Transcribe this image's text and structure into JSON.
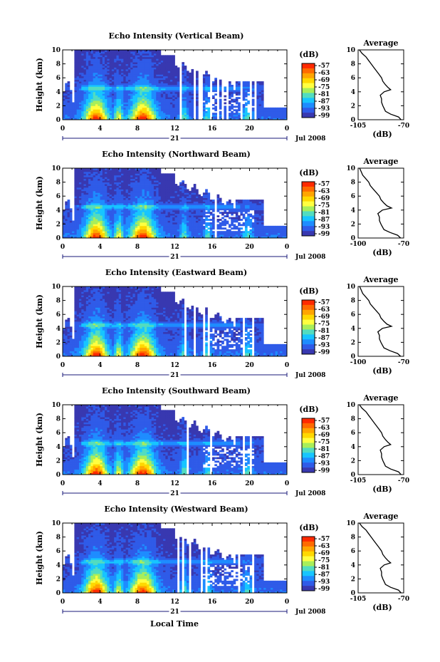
{
  "colorbar": {
    "unit": "(dB)",
    "labels": [
      "-57",
      "-63",
      "-69",
      "-75",
      "-81",
      "-87",
      "-93",
      "-99"
    ],
    "colors": [
      "#ff2a00",
      "#ff6a00",
      "#ffa500",
      "#ffd800",
      "#ffff40",
      "#a8ee5a",
      "#52dcc0",
      "#17c5ff",
      "#1e8cff",
      "#2f5be8",
      "#3838b0"
    ]
  },
  "xaxis": {
    "ticks": [
      "0",
      "4",
      "8",
      "12",
      "16",
      "20",
      "0"
    ],
    "day_label": "21",
    "month_label": "Jul 2008",
    "label": "Local Time"
  },
  "chart_data": [
    {
      "type": "heatmap",
      "title": "Echo Intensity (Vertical Beam)",
      "ylabel": "Height (km)",
      "yticks": [
        "0",
        "2",
        "4",
        "6",
        "8",
        "10"
      ],
      "ylim": [
        0,
        10
      ],
      "xlim": [
        0,
        24
      ],
      "legend": "right",
      "profile": {
        "title": "Average",
        "xlabel": "(dB)",
        "xticks": [
          "-105",
          "-70"
        ],
        "xlim": [
          -105,
          -70
        ],
        "yticks": [
          "0",
          "2",
          "4",
          "6",
          "8",
          "10"
        ],
        "heights": [
          0,
          0.4,
          0.8,
          1.2,
          1.6,
          2.0,
          2.5,
          3.0,
          3.5,
          4.0,
          4.3,
          4.6,
          5.0,
          5.5,
          6.0,
          6.5,
          7.0,
          7.5,
          8.0,
          8.5,
          9.0,
          9.5,
          10.0
        ],
        "values": [
          -72,
          -74,
          -80,
          -84,
          -85,
          -86,
          -87,
          -87,
          -88,
          -85,
          -80,
          -82,
          -84,
          -86,
          -87,
          -89,
          -91,
          -93,
          -95,
          -97,
          -99,
          -102,
          -104
        ]
      }
    },
    {
      "type": "heatmap",
      "title": "Echo Intensity (Northward Beam)",
      "ylabel": "Height (km)",
      "yticks": [
        "0",
        "2",
        "4",
        "6",
        "8",
        "10"
      ],
      "ylim": [
        0,
        10
      ],
      "xlim": [
        0,
        24
      ],
      "legend": "right",
      "profile": {
        "title": "Average",
        "xlabel": "(dB)",
        "xticks": [
          "-100",
          "-70"
        ],
        "xlim": [
          -100,
          -70
        ],
        "yticks": [
          "0",
          "2",
          "4",
          "6",
          "8",
          "10"
        ],
        "heights": [
          0,
          0.4,
          0.8,
          1.2,
          1.6,
          2.0,
          2.5,
          3.0,
          3.5,
          4.0,
          4.3,
          4.6,
          5.0,
          5.5,
          6.0,
          6.5,
          7.0,
          7.5,
          8.0,
          8.5,
          9.0,
          9.5,
          10.0
        ],
        "values": [
          -72,
          -74,
          -79,
          -83,
          -84,
          -85,
          -86,
          -86,
          -87,
          -84,
          -78,
          -81,
          -83,
          -85,
          -86,
          -88,
          -90,
          -92,
          -93,
          -95,
          -97,
          -98,
          -99
        ]
      }
    },
    {
      "type": "heatmap",
      "title": "Echo Intensity (Eastward Beam)",
      "ylabel": "Height (km)",
      "yticks": [
        "0",
        "2",
        "4",
        "6",
        "8",
        "10"
      ],
      "ylim": [
        0,
        10
      ],
      "xlim": [
        0,
        24
      ],
      "legend": "right",
      "profile": {
        "title": "Average",
        "xlabel": "(dB)",
        "xticks": [
          "-100",
          "-70"
        ],
        "xlim": [
          -100,
          -70
        ],
        "yticks": [
          "0",
          "2",
          "4",
          "6",
          "8",
          "10"
        ],
        "heights": [
          0,
          0.4,
          0.8,
          1.2,
          1.6,
          2.0,
          2.5,
          3.0,
          3.5,
          4.0,
          4.3,
          4.6,
          5.0,
          5.5,
          6.0,
          6.5,
          7.0,
          7.5,
          8.0,
          8.5,
          9.0,
          9.5,
          10.0
        ],
        "values": [
          -72,
          -74,
          -79,
          -83,
          -84,
          -85,
          -86,
          -86,
          -87,
          -84,
          -78,
          -81,
          -83,
          -85,
          -86,
          -88,
          -90,
          -92,
          -93,
          -95,
          -97,
          -98,
          -99
        ]
      }
    },
    {
      "type": "heatmap",
      "title": "Echo Intensity (Southward Beam)",
      "ylabel": "Height (km)",
      "yticks": [
        "0",
        "2",
        "4",
        "6",
        "8",
        "10"
      ],
      "ylim": [
        0,
        10
      ],
      "xlim": [
        0,
        24
      ],
      "legend": "right",
      "profile": {
        "title": "Average",
        "xlabel": "(dB)",
        "xticks": [
          "-105",
          "-70"
        ],
        "xlim": [
          -105,
          -70
        ],
        "yticks": [
          "0",
          "2",
          "4",
          "6",
          "8",
          "10"
        ],
        "heights": [
          0,
          0.4,
          0.8,
          1.2,
          1.6,
          2.0,
          2.5,
          3.0,
          3.5,
          4.0,
          4.3,
          4.6,
          5.0,
          5.5,
          6.0,
          6.5,
          7.0,
          7.5,
          8.0,
          8.5,
          9.0,
          9.5,
          10.0
        ],
        "values": [
          -72,
          -74,
          -80,
          -84,
          -85,
          -86,
          -87,
          -87,
          -88,
          -85,
          -80,
          -82,
          -84,
          -86,
          -87,
          -89,
          -91,
          -93,
          -95,
          -97,
          -99,
          -102,
          -104
        ]
      }
    },
    {
      "type": "heatmap",
      "title": "Echo Intensity (Westward Beam)",
      "ylabel": "Height (km)",
      "yticks": [
        "0",
        "2",
        "4",
        "6",
        "8",
        "10"
      ],
      "ylim": [
        0,
        10
      ],
      "xlim": [
        0,
        24
      ],
      "legend": "right",
      "profile": {
        "title": "Average",
        "xlabel": "(dB)",
        "xticks": [
          "-105",
          "-70"
        ],
        "xlim": [
          -105,
          -70
        ],
        "yticks": [
          "0",
          "2",
          "4",
          "6",
          "8",
          "10"
        ],
        "heights": [
          0,
          0.4,
          0.8,
          1.2,
          1.6,
          2.0,
          2.5,
          3.0,
          3.5,
          4.0,
          4.3,
          4.6,
          5.0,
          5.5,
          6.0,
          6.5,
          7.0,
          7.5,
          8.0,
          8.5,
          9.0,
          9.5,
          10.0
        ],
        "values": [
          -72,
          -74,
          -80,
          -84,
          -85,
          -86,
          -87,
          -87,
          -88,
          -85,
          -80,
          -82,
          -84,
          -86,
          -87,
          -89,
          -91,
          -93,
          -95,
          -97,
          -99,
          -102,
          -104
        ]
      }
    }
  ]
}
